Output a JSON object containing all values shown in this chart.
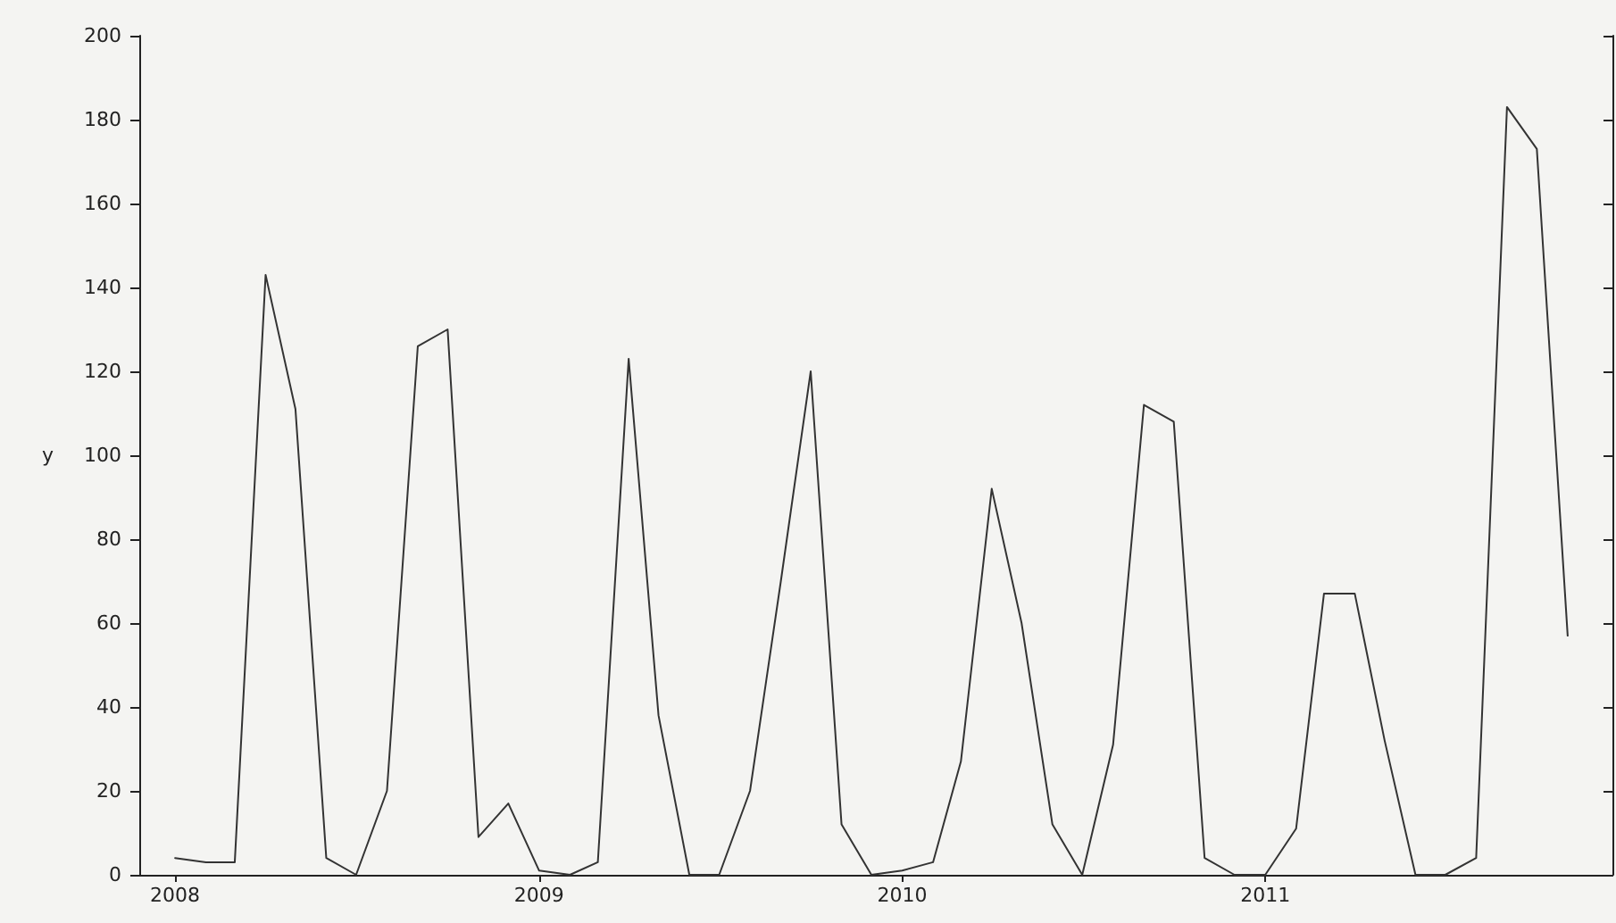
{
  "chart_data": {
    "type": "line",
    "ylabel": "y",
    "x": [
      "2008-01",
      "2008-02",
      "2008-03",
      "2008-04",
      "2008-05",
      "2008-06",
      "2008-07",
      "2008-08",
      "2008-09",
      "2008-10",
      "2008-11",
      "2008-12",
      "2009-01",
      "2009-02",
      "2009-03",
      "2009-04",
      "2009-05",
      "2009-06",
      "2009-07",
      "2009-08",
      "2009-09",
      "2009-10",
      "2009-11",
      "2009-12",
      "2010-01",
      "2010-02",
      "2010-03",
      "2010-04",
      "2010-05",
      "2010-06",
      "2010-07",
      "2010-08",
      "2010-09",
      "2010-10",
      "2010-11",
      "2010-12",
      "2011-01",
      "2011-02",
      "2011-03",
      "2011-04",
      "2011-05",
      "2011-06",
      "2011-07",
      "2011-08",
      "2011-09",
      "2011-10",
      "2011-11"
    ],
    "series": [
      {
        "color": "#333333",
        "values": [
          4,
          3,
          3,
          143,
          111,
          4,
          0,
          20,
          126,
          130,
          9,
          17,
          1,
          0,
          3,
          123,
          38,
          0,
          0,
          20,
          70,
          120,
          12,
          0,
          1,
          3,
          27,
          92,
          60,
          12,
          0,
          31,
          112,
          108,
          4,
          0,
          0,
          11,
          67,
          67,
          32,
          0,
          0,
          4,
          183,
          173,
          57
        ]
      }
    ],
    "xlim": [
      "2007-11-26",
      "2011-12-16"
    ],
    "xticks": [
      "2008",
      "2009",
      "2010",
      "2011"
    ],
    "ylim": [
      0,
      200
    ],
    "yticks": [
      0,
      20,
      40,
      60,
      80,
      100,
      120,
      140,
      160,
      180,
      200
    ],
    "grid": false,
    "marker": "none",
    "line_style": "solid"
  }
}
